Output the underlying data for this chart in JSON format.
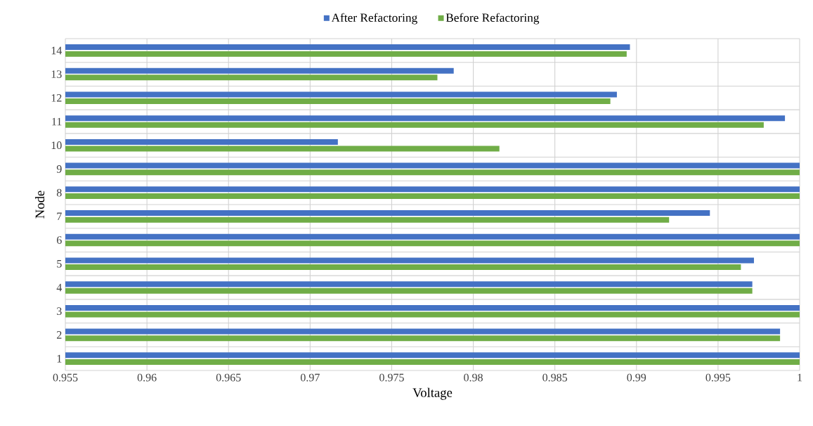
{
  "chart_data": {
    "type": "bar",
    "orientation": "horizontal",
    "xlabel": "Voltage",
    "ylabel": "Node",
    "categories": [
      "14",
      "13",
      "12",
      "11",
      "10",
      "9",
      "8",
      "7",
      "6",
      "5",
      "4",
      "3",
      "2",
      "1"
    ],
    "series": [
      {
        "name": "After Refactoring",
        "color": "#4472c4",
        "values": [
          0.9896,
          0.9788,
          0.9888,
          0.9991,
          0.9717,
          1,
          1,
          0.9945,
          1,
          0.9972,
          0.9971,
          1,
          0.9988,
          1
        ]
      },
      {
        "name": "Before Refactoring",
        "color": "#70ad47",
        "values": [
          0.9894,
          0.9778,
          0.9884,
          0.9978,
          0.9816,
          1,
          1,
          0.992,
          1,
          0.9964,
          0.9971,
          1,
          0.9988,
          1
        ]
      }
    ],
    "xlim": [
      0.955,
      1
    ],
    "xticks": [
      0.955,
      0.96,
      0.965,
      0.97,
      0.975,
      0.98,
      0.985,
      0.99,
      0.995,
      1
    ],
    "grid": true,
    "legend": "top"
  }
}
